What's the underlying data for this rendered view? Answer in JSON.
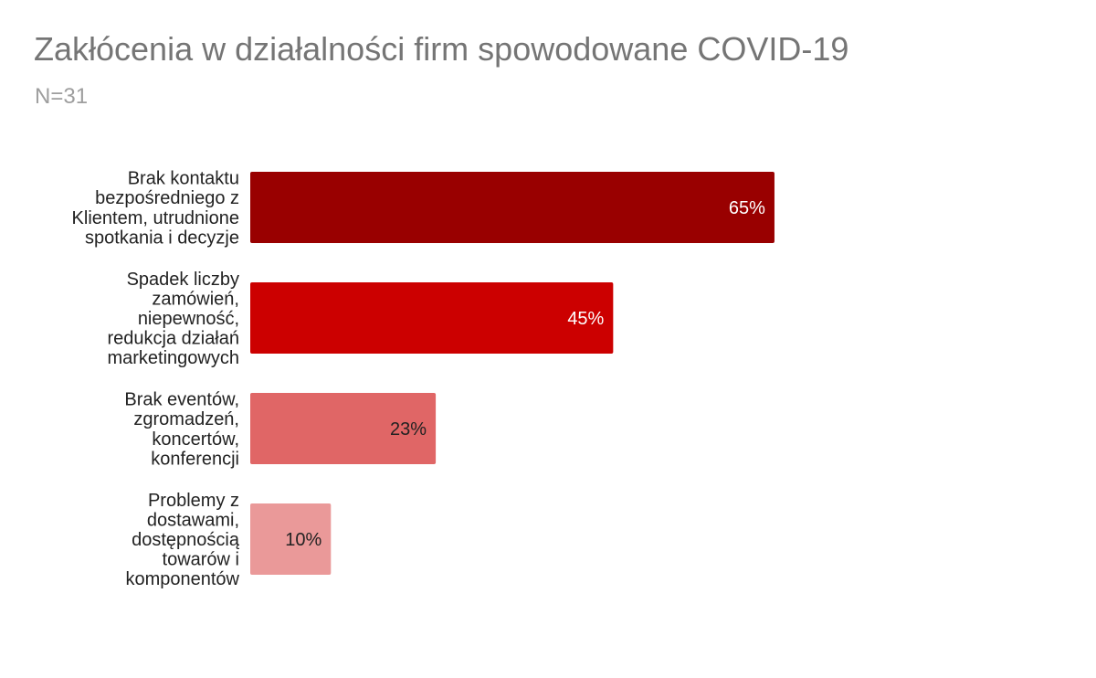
{
  "chart_data": {
    "type": "bar",
    "orientation": "horizontal",
    "title": "Zakłócenia w działalności firm spowodowane COVID-19",
    "subtitle": "N=31",
    "categories": [
      [
        "Brak kontaktu",
        "bezpośredniego z",
        "Klientem, utrudnione",
        "spotkania i decyzje"
      ],
      [
        "Spadek liczby",
        "zamówień,",
        "niepewność,",
        "redukcja działań",
        "marketingowych"
      ],
      [
        "Brak eventów,",
        "zgromadzeń,",
        "koncertów,",
        "konferencji"
      ],
      [
        "Problemy z",
        "dostawami,",
        "dostępnością",
        "towarów i",
        "komponentów"
      ]
    ],
    "values": [
      65,
      45,
      23,
      10
    ],
    "value_labels": [
      "65%",
      "45%",
      "23%",
      "10%"
    ],
    "colors": [
      "#990000",
      "#cc0000",
      "#e06666",
      "#ea9999"
    ],
    "label_colors": [
      "#ffffff",
      "#ffffff",
      "#222222",
      "#222222"
    ],
    "xlim": [
      0,
      100
    ],
    "grid": false,
    "legend": "none"
  }
}
